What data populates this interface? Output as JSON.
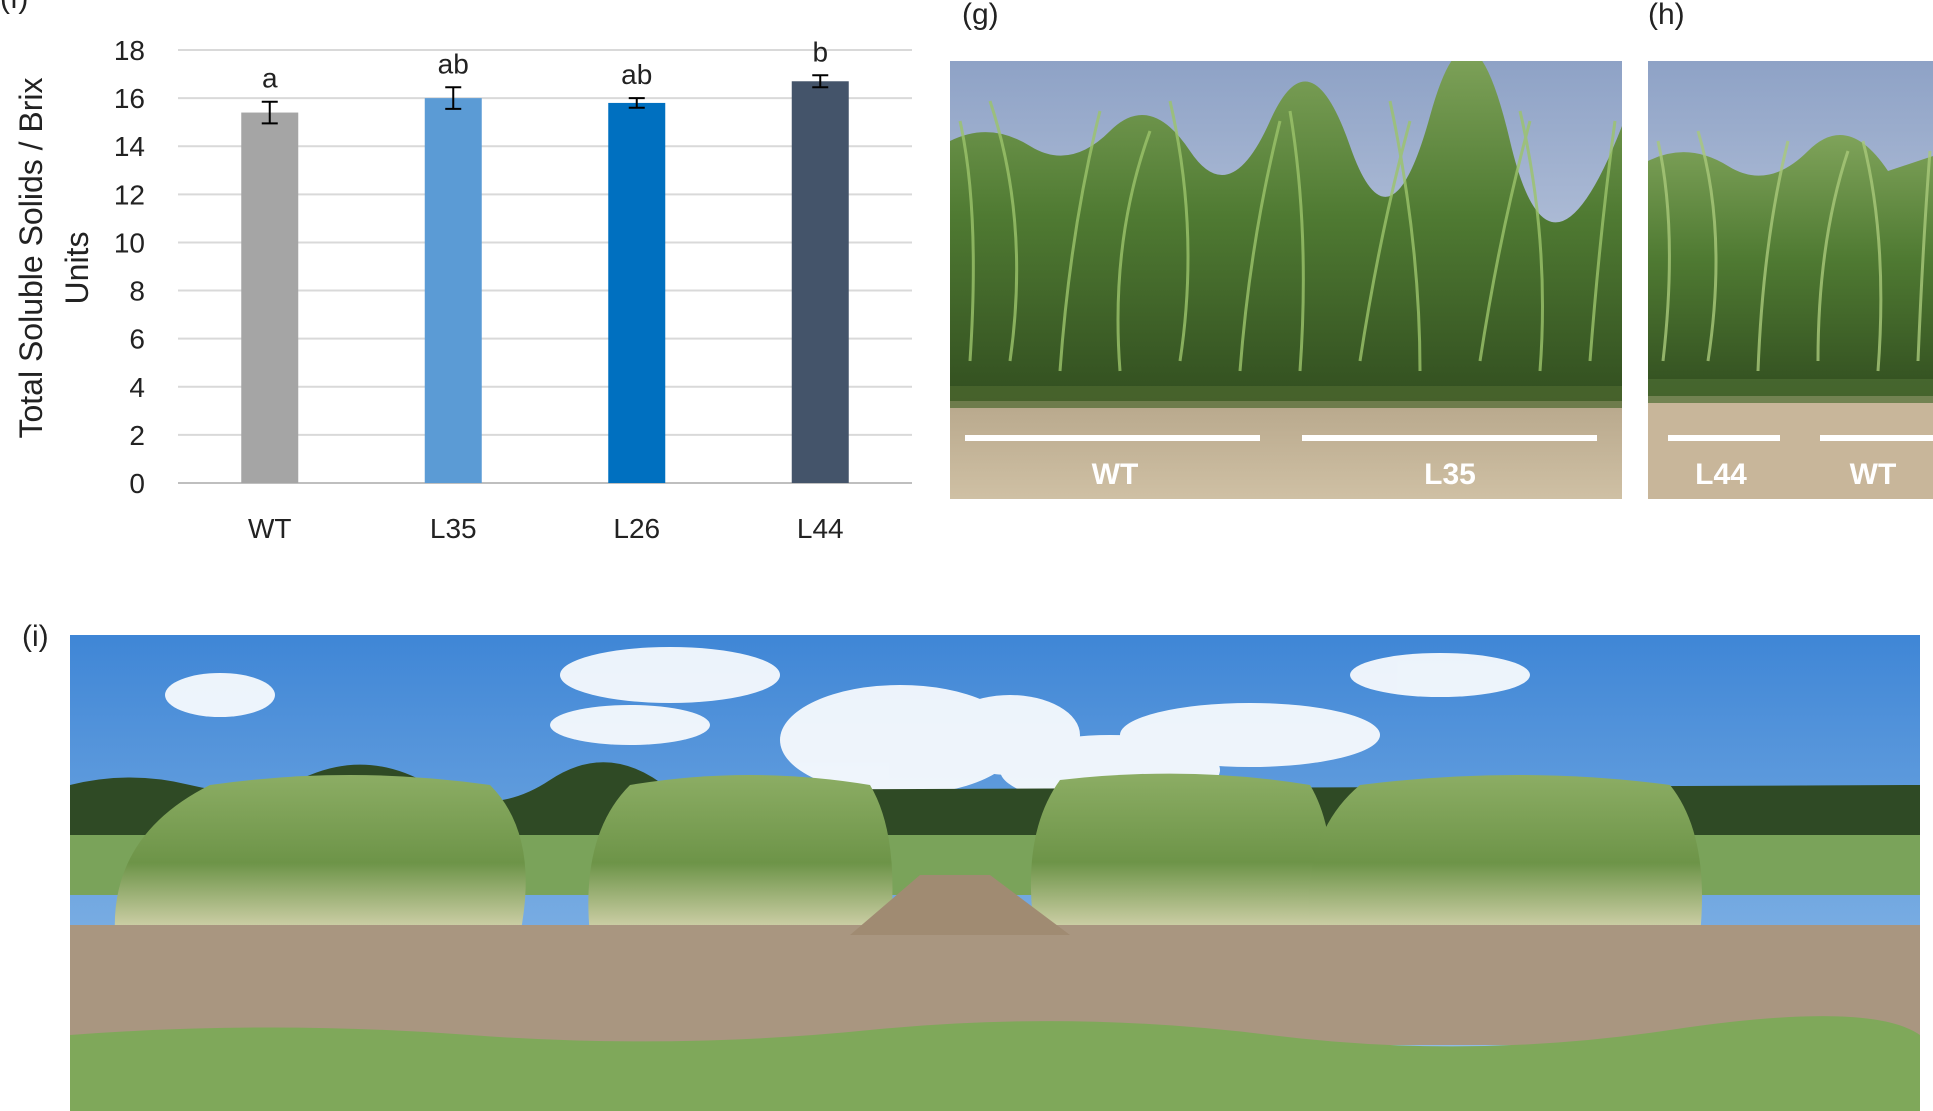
{
  "panels": {
    "f": "(f)",
    "g": "(g)",
    "h": "(h)",
    "i": "(i)"
  },
  "chart_data": {
    "type": "bar",
    "ylabel_line1": "Total Soluble Solids / Brix",
    "ylabel_line2": "Units",
    "xlabel": "",
    "ylim": [
      0,
      18
    ],
    "yticks": [
      0,
      2,
      4,
      6,
      8,
      10,
      12,
      14,
      16,
      18
    ],
    "grid": true,
    "categories": [
      "WT",
      "L35",
      "L26",
      "L44"
    ],
    "values": [
      15.4,
      16.0,
      15.8,
      16.7
    ],
    "errors": [
      0.45,
      0.45,
      0.2,
      0.25
    ],
    "significance": [
      "a",
      "ab",
      "ab",
      "b"
    ],
    "colors": [
      "#a5a5a5",
      "#5b9bd5",
      "#0070c0",
      "#44546a"
    ]
  },
  "photo_g": {
    "labels": [
      "WT",
      "L35"
    ]
  },
  "photo_h": {
    "labels": [
      "L44",
      "WT"
    ]
  }
}
